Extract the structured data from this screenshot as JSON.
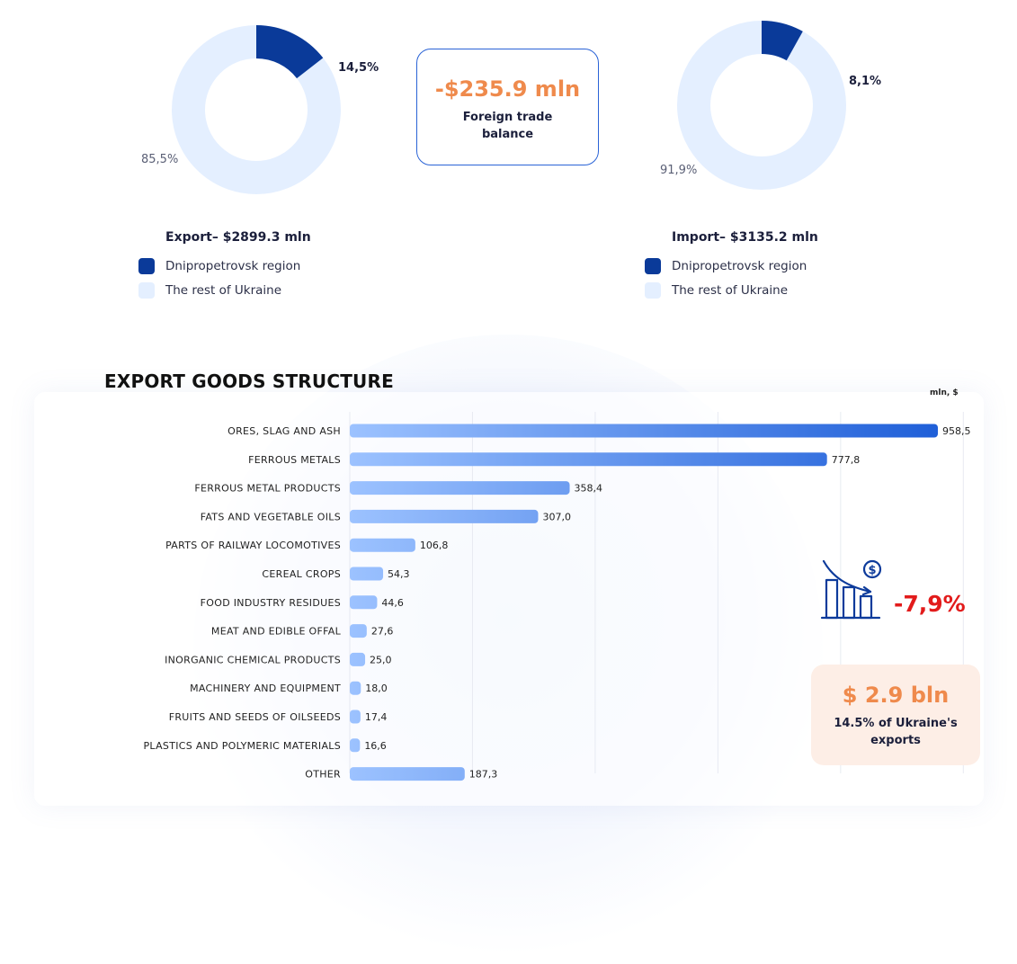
{
  "export_donut": {
    "region_pct": 14.5,
    "region_label": "14,5%",
    "rest_label": "85,5%",
    "title": "Export– $2899.3 mln",
    "legend": [
      "Dnipropetrovsk region",
      "The rest of Ukraine"
    ]
  },
  "import_donut": {
    "region_pct": 8.1,
    "region_label": "8,1%",
    "rest_label": "91,9%",
    "title": "Import– $3135.2 mln",
    "legend": [
      "Dnipropetrovsk region",
      "The rest of Ukraine"
    ]
  },
  "colors": {
    "region": "#0a3a99",
    "rest": "#e4efff",
    "bar_start": "#9cc2ff",
    "bar_end": "#1f5fd8",
    "accent": "#ef8a4c",
    "negative": "#e21b1b"
  },
  "balance": {
    "value": "-$235.9 mln",
    "label": "Foreign trade balance"
  },
  "chart_data": {
    "type": "bar",
    "orientation": "horizontal",
    "title": "EXPORT GOODS STRUCTURE",
    "unit": "mln, $",
    "categories": [
      "ORES, SLAG AND ASH",
      "FERROUS METALS",
      "FERROUS METAL PRODUCTS",
      "FATS AND VEGETABLE OILS",
      "PARTS OF RAILWAY LOCOMOTIVES",
      "CEREAL CROPS",
      "FOOD INDUSTRY RESIDUES",
      "MEAT AND EDIBLE OFFAL",
      "INORGANIC CHEMICAL PRODUCTS",
      "MACHINERY AND EQUIPMENT",
      "FRUITS AND SEEDS OF OILSEEDS",
      "PLASTICS AND POLYMERIC MATERIALS",
      "OTHER"
    ],
    "values": [
      958.5,
      777.8,
      358.4,
      307.0,
      106.8,
      54.3,
      44.6,
      27.6,
      25.0,
      18.0,
      17.4,
      16.6,
      187.3
    ],
    "value_labels": [
      "958,5",
      "777,8",
      "358,4",
      "307,0",
      "106,8",
      "54,3",
      "44,6",
      "27,6",
      "25,0",
      "18,0",
      "17,4",
      "16,6",
      "187,3"
    ],
    "xlim": [
      0,
      1000
    ],
    "grid": true
  },
  "decline": {
    "value": "-7,9%",
    "icon": "declining-bar-chart-dollar-icon"
  },
  "summary": {
    "value": "$ 2.9 bln",
    "label": "14.5% of Ukraine's exports"
  }
}
